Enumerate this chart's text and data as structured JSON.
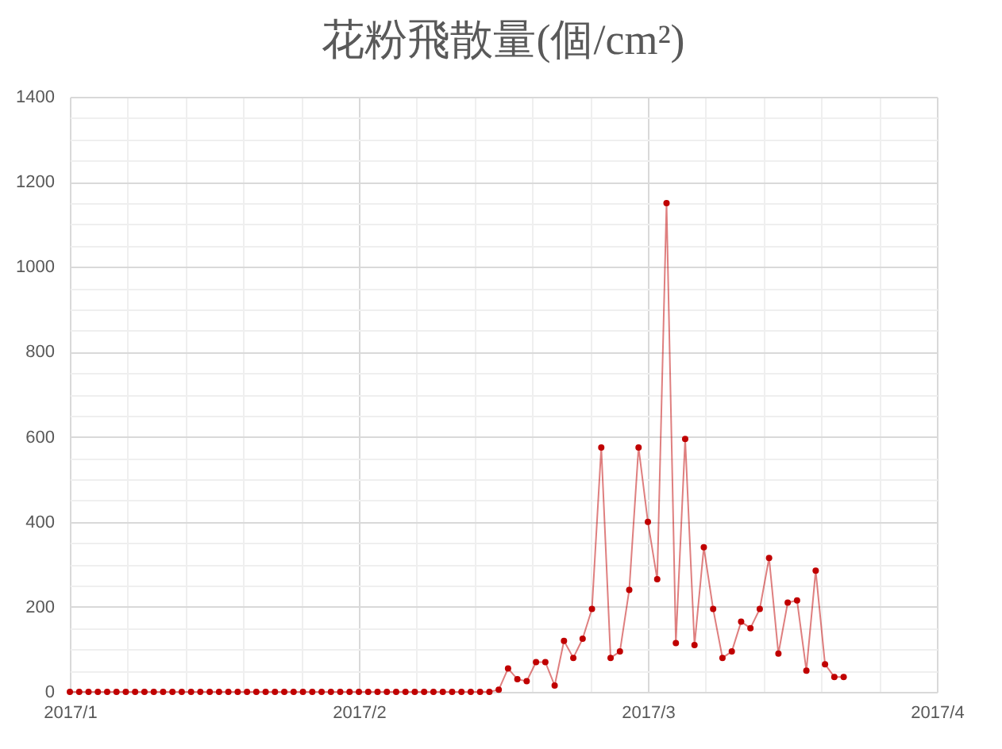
{
  "chart_data": {
    "type": "line",
    "title": "花粉飛散量(個/cm²)",
    "x": [
      "2017-01-01",
      "2017-01-02",
      "2017-01-03",
      "2017-01-04",
      "2017-01-05",
      "2017-01-06",
      "2017-01-07",
      "2017-01-08",
      "2017-01-09",
      "2017-01-10",
      "2017-01-11",
      "2017-01-12",
      "2017-01-13",
      "2017-01-14",
      "2017-01-15",
      "2017-01-16",
      "2017-01-17",
      "2017-01-18",
      "2017-01-19",
      "2017-01-20",
      "2017-01-21",
      "2017-01-22",
      "2017-01-23",
      "2017-01-24",
      "2017-01-25",
      "2017-01-26",
      "2017-01-27",
      "2017-01-28",
      "2017-01-29",
      "2017-01-30",
      "2017-01-31",
      "2017-02-01",
      "2017-02-02",
      "2017-02-03",
      "2017-02-04",
      "2017-02-05",
      "2017-02-06",
      "2017-02-07",
      "2017-02-08",
      "2017-02-09",
      "2017-02-10",
      "2017-02-11",
      "2017-02-12",
      "2017-02-13",
      "2017-02-14",
      "2017-02-15",
      "2017-02-16",
      "2017-02-17",
      "2017-02-18",
      "2017-02-19",
      "2017-02-20",
      "2017-02-21",
      "2017-02-22",
      "2017-02-23",
      "2017-02-24",
      "2017-02-25",
      "2017-02-26",
      "2017-02-27",
      "2017-02-28",
      "2017-03-01",
      "2017-03-02",
      "2017-03-03",
      "2017-03-04",
      "2017-03-05",
      "2017-03-06",
      "2017-03-07",
      "2017-03-08",
      "2017-03-09",
      "2017-03-10",
      "2017-03-11",
      "2017-03-12",
      "2017-03-13",
      "2017-03-14",
      "2017-03-15",
      "2017-03-16",
      "2017-03-17",
      "2017-03-18",
      "2017-03-19",
      "2017-03-20",
      "2017-03-21",
      "2017-03-22",
      "2017-03-23",
      "2017-03-24",
      "2017-03-25"
    ],
    "series": [
      {
        "color": "#c00000",
        "values": [
          0,
          0,
          0,
          0,
          0,
          0,
          0,
          0,
          0,
          0,
          0,
          0,
          0,
          0,
          0,
          0,
          0,
          0,
          0,
          0,
          0,
          0,
          0,
          0,
          0,
          0,
          0,
          0,
          0,
          0,
          0,
          0,
          0,
          0,
          0,
          0,
          0,
          0,
          0,
          0,
          0,
          0,
          0,
          0,
          0,
          0,
          5,
          55,
          30,
          25,
          70,
          70,
          15,
          120,
          80,
          125,
          195,
          575,
          80,
          95,
          240,
          575,
          400,
          265,
          1150,
          115,
          595,
          110,
          340,
          195,
          80,
          95,
          165,
          150,
          195,
          315,
          90,
          210,
          215,
          50,
          285,
          65,
          35,
          35
        ]
      }
    ],
    "xlim": [
      "2017-01-01",
      "2017-04-04"
    ],
    "xticks": [
      {
        "value": "2017-01-01",
        "label": "2017/1"
      },
      {
        "value": "2017-01-07T04:48",
        "label": null
      },
      {
        "value": "2017-01-13T09:36",
        "label": null
      },
      {
        "value": "2017-01-19T14:24",
        "label": null
      },
      {
        "value": "2017-01-25T19:12",
        "label": null
      },
      {
        "value": "2017-02-01",
        "label": "2017/2"
      },
      {
        "value": "2017-02-07T04:48",
        "label": null
      },
      {
        "value": "2017-02-13T09:36",
        "label": null
      },
      {
        "value": "2017-02-19T14:24",
        "label": null
      },
      {
        "value": "2017-02-25T19:12",
        "label": null
      },
      {
        "value": "2017-03-04",
        "label": "2017/3"
      },
      {
        "value": "2017-03-10T04:48",
        "label": null
      },
      {
        "value": "2017-03-16T09:36",
        "label": null
      },
      {
        "value": "2017-03-22T14:24",
        "label": null
      },
      {
        "value": "2017-03-28T19:12",
        "label": null
      },
      {
        "value": "2017-04-04",
        "label": "2017/4"
      }
    ],
    "ylim": [
      0,
      1400
    ],
    "yticks": [
      0,
      {
        "value": 50,
        "label": null
      },
      {
        "value": 100,
        "label": null
      },
      {
        "value": 150,
        "label": null
      },
      200,
      {
        "value": 250,
        "label": null
      },
      {
        "value": 300,
        "label": null
      },
      {
        "value": 350,
        "label": null
      },
      400,
      {
        "value": 450,
        "label": null
      },
      {
        "value": 500,
        "label": null
      },
      {
        "value": 550,
        "label": null
      },
      600,
      {
        "value": 650,
        "label": null
      },
      {
        "value": 700,
        "label": null
      },
      {
        "value": 750,
        "label": null
      },
      800,
      {
        "value": 850,
        "label": null
      },
      {
        "value": 900,
        "label": null
      },
      {
        "value": 950,
        "label": null
      },
      1000,
      {
        "value": 1050,
        "label": null
      },
      {
        "value": 1100,
        "label": null
      },
      {
        "value": 1150,
        "label": null
      },
      1200,
      {
        "value": 1250,
        "label": null
      },
      {
        "value": 1300,
        "label": null
      },
      {
        "value": 1350,
        "label": null
      },
      1400
    ],
    "grid": true,
    "marker": "circle",
    "line_style": "solid"
  }
}
